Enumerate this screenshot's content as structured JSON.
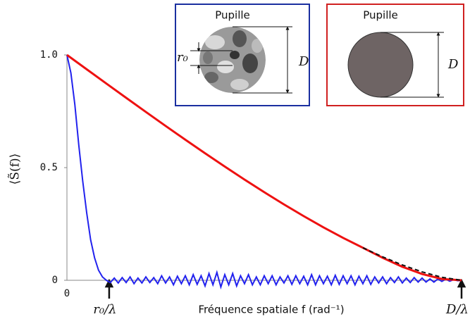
{
  "chart_data": {
    "type": "line",
    "y_label": "⟨S̃(f)⟩",
    "x_label": "Fréquence spatiale f (rad⁻¹)",
    "xlim": [
      0,
      1
    ],
    "ylim": [
      0,
      1
    ],
    "yticks": [
      0,
      0.5,
      {
        "value": 1,
        "label": "1.0"
      }
    ],
    "xticks": [
      0,
      {
        "value": 0.107,
        "label": "r₀/λ"
      },
      {
        "value": 1,
        "label": "D/λ"
      }
    ],
    "series": [
      {
        "color": "#2222ee",
        "x": [
          0,
          0.01,
          0.02,
          0.03,
          0.04,
          0.05,
          0.06,
          0.07,
          0.08,
          0.09,
          0.1,
          0.11,
          0.12,
          0.13,
          0.14,
          0.15,
          0.16,
          0.17,
          0.18,
          0.19,
          0.2,
          0.21,
          0.22,
          0.23,
          0.24,
          0.25,
          0.26,
          0.27,
          0.28,
          0.29,
          0.3,
          0.31,
          0.32,
          0.33,
          0.34,
          0.35,
          0.36,
          0.37,
          0.38,
          0.39,
          0.4,
          0.41,
          0.42,
          0.43,
          0.44,
          0.45,
          0.46,
          0.47,
          0.48,
          0.49,
          0.5,
          0.51,
          0.52,
          0.53,
          0.54,
          0.55,
          0.56,
          0.57,
          0.58,
          0.59,
          0.6,
          0.61,
          0.62,
          0.63,
          0.64,
          0.65,
          0.66,
          0.67,
          0.68,
          0.69,
          0.7,
          0.71,
          0.72,
          0.73,
          0.74,
          0.75,
          0.76,
          0.77,
          0.78,
          0.79,
          0.8,
          0.81,
          0.82,
          0.83,
          0.84,
          0.85,
          0.86,
          0.87,
          0.88,
          0.89,
          0.9,
          0.91,
          0.92,
          0.93,
          0.94,
          0.95,
          0.96,
          0.97,
          0.98,
          0.99,
          1
        ],
        "values": [
          1,
          0.92,
          0.78,
          0.6,
          0.44,
          0.3,
          0.18,
          0.1,
          0.045,
          0.015,
          0,
          -0.01,
          0.01,
          -0.012,
          0.012,
          -0.01,
          0.015,
          -0.015,
          0.01,
          -0.012,
          0.015,
          -0.01,
          0.012,
          -0.015,
          0.02,
          -0.012,
          0.015,
          -0.02,
          0.018,
          -0.015,
          0.02,
          -0.02,
          0.025,
          -0.018,
          0.02,
          -0.025,
          0.03,
          -0.02,
          0.035,
          -0.03,
          0.025,
          -0.02,
          0.03,
          -0.025,
          0.02,
          -0.015,
          0.025,
          -0.02,
          0.015,
          -0.02,
          0.02,
          -0.015,
          0.02,
          -0.02,
          0.015,
          -0.012,
          0.02,
          -0.018,
          0.02,
          -0.015,
          0.018,
          -0.02,
          0.025,
          -0.02,
          0.02,
          -0.015,
          0.018,
          -0.02,
          0.022,
          -0.018,
          0.02,
          -0.015,
          0.02,
          -0.02,
          0.018,
          -0.015,
          0.02,
          -0.018,
          0.015,
          -0.012,
          0.015,
          -0.015,
          0.012,
          -0.01,
          0.015,
          -0.012,
          0.01,
          -0.01,
          0.012,
          -0.008,
          0.01,
          -0.008,
          0.006,
          -0.008,
          0.006,
          -0.005,
          0.005,
          -0.004,
          0.003,
          -0.002,
          0
        ]
      },
      {
        "color": "#ee1111",
        "x": [
          0,
          0.05,
          0.1,
          0.15,
          0.2,
          0.25,
          0.3,
          0.35,
          0.4,
          0.45,
          0.5,
          0.55,
          0.6,
          0.65,
          0.7,
          0.75,
          0.8,
          0.85,
          0.9,
          0.95,
          1
        ],
        "values": [
          1,
          0.9363,
          0.8729,
          0.8097,
          0.7471,
          0.685,
          0.6238,
          0.5636,
          0.5046,
          0.447,
          0.391,
          0.3368,
          0.2848,
          0.2351,
          0.1881,
          0.1443,
          0.1,
          0.06,
          0.028,
          0.006,
          0
        ]
      },
      {
        "color": "#111111",
        "dashed": true,
        "x": [
          0.75,
          0.8,
          0.85,
          0.9,
          0.95,
          1
        ],
        "values": [
          0.1443,
          0.1041,
          0.0681,
          0.0374,
          0.0133,
          0
        ]
      }
    ],
    "annotations": [
      {
        "title": "Pupille",
        "r0": "r₀",
        "D": "D"
      },
      {
        "title": "Pupille",
        "D": "D"
      }
    ]
  }
}
